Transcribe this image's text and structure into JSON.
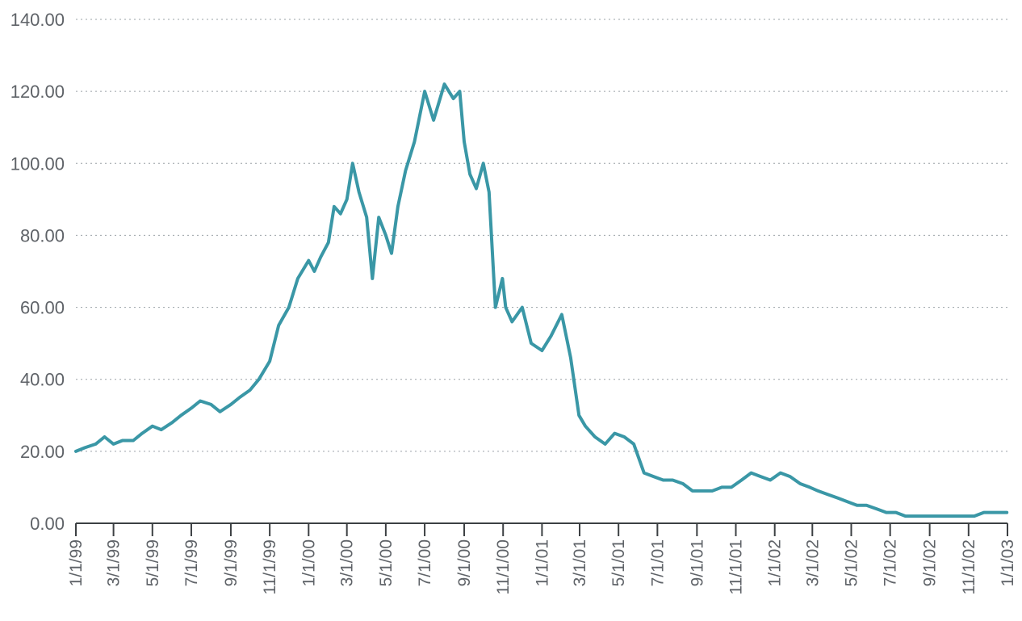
{
  "chart_data": {
    "type": "line",
    "title": "",
    "xlabel": "",
    "ylabel": "",
    "ylim": [
      0,
      140
    ],
    "y_ticks": [
      "0.00",
      "20.00",
      "40.00",
      "60.00",
      "80.00",
      "100.00",
      "120.00",
      "140.00"
    ],
    "y_tick_values": [
      0,
      20,
      40,
      60,
      80,
      100,
      120,
      140
    ],
    "x_ticks": [
      "1/1/99",
      "3/1/99",
      "5/1/99",
      "7/1/99",
      "9/1/99",
      "11/1/99",
      "1/1/00",
      "3/1/00",
      "5/1/00",
      "7/1/00",
      "9/1/00",
      "11/1/00",
      "1/1/01",
      "3/1/01",
      "5/1/01",
      "7/1/01",
      "9/1/01",
      "11/1/01",
      "1/1/02",
      "3/1/02",
      "5/1/02",
      "7/1/02",
      "9/1/02",
      "11/1/02",
      "1/1/03"
    ],
    "grid": true,
    "series_color": "#3a97a6",
    "series": [
      {
        "x": [
          "1999-01-01",
          "1999-01-15",
          "1999-02-01",
          "1999-02-15",
          "1999-03-01",
          "1999-03-15",
          "1999-04-01",
          "1999-04-15",
          "1999-05-01",
          "1999-05-15",
          "1999-06-01",
          "1999-06-15",
          "1999-07-01",
          "1999-07-15",
          "1999-08-01",
          "1999-08-15",
          "1999-09-01",
          "1999-09-15",
          "1999-10-01",
          "1999-10-15",
          "1999-11-01",
          "1999-11-15",
          "1999-12-01",
          "1999-12-15",
          "2000-01-01",
          "2000-01-10",
          "2000-01-20",
          "2000-02-01",
          "2000-02-10",
          "2000-02-20",
          "2000-03-01",
          "2000-03-10",
          "2000-03-20",
          "2000-04-01",
          "2000-04-10",
          "2000-04-20",
          "2000-05-01",
          "2000-05-10",
          "2000-05-20",
          "2000-06-01",
          "2000-06-15",
          "2000-07-01",
          "2000-07-15",
          "2000-08-01",
          "2000-08-15",
          "2000-08-25",
          "2000-09-01",
          "2000-09-10",
          "2000-09-20",
          "2000-10-01",
          "2000-10-10",
          "2000-10-20",
          "2000-10-31",
          "2000-11-05",
          "2000-11-15",
          "2000-12-01",
          "2000-12-15",
          "2001-01-01",
          "2001-01-15",
          "2001-02-01",
          "2001-02-15",
          "2001-02-28",
          "2001-03-10",
          "2001-03-25",
          "2001-04-10",
          "2001-04-25",
          "2001-05-10",
          "2001-05-25",
          "2001-06-10",
          "2001-06-25",
          "2001-07-10",
          "2001-07-25",
          "2001-08-10",
          "2001-08-25",
          "2001-09-10",
          "2001-09-25",
          "2001-10-10",
          "2001-10-25",
          "2001-11-10",
          "2001-11-25",
          "2001-12-10",
          "2001-12-25",
          "2002-01-10",
          "2002-01-25",
          "2002-02-10",
          "2002-02-25",
          "2002-03-10",
          "2002-03-25",
          "2002-04-10",
          "2002-04-25",
          "2002-05-10",
          "2002-05-25",
          "2002-06-10",
          "2002-06-25",
          "2002-07-10",
          "2002-07-25",
          "2002-08-10",
          "2002-08-25",
          "2002-09-10",
          "2002-09-25",
          "2002-10-10",
          "2002-10-25",
          "2002-11-10",
          "2002-11-25",
          "2002-12-10",
          "2002-12-31"
        ],
        "values": [
          20,
          21,
          22,
          24,
          22,
          23,
          23,
          25,
          27,
          26,
          28,
          30,
          32,
          34,
          33,
          31,
          33,
          35,
          37,
          40,
          45,
          55,
          60,
          68,
          73,
          70,
          74,
          78,
          88,
          86,
          90,
          100,
          92,
          85,
          68,
          85,
          80,
          75,
          88,
          98,
          106,
          120,
          112,
          122,
          118,
          120,
          106,
          97,
          93,
          100,
          92,
          60,
          68,
          60,
          56,
          60,
          50,
          48,
          52,
          58,
          46,
          30,
          27,
          24,
          22,
          25,
          24,
          22,
          14,
          13,
          12,
          12,
          11,
          9,
          9,
          9,
          10,
          10,
          12,
          14,
          13,
          12,
          14,
          13,
          11,
          10,
          9,
          8,
          7,
          6,
          5,
          5,
          4,
          3,
          3,
          2,
          2,
          2,
          2,
          2,
          2,
          2,
          2,
          3,
          3,
          3
        ]
      }
    ]
  }
}
